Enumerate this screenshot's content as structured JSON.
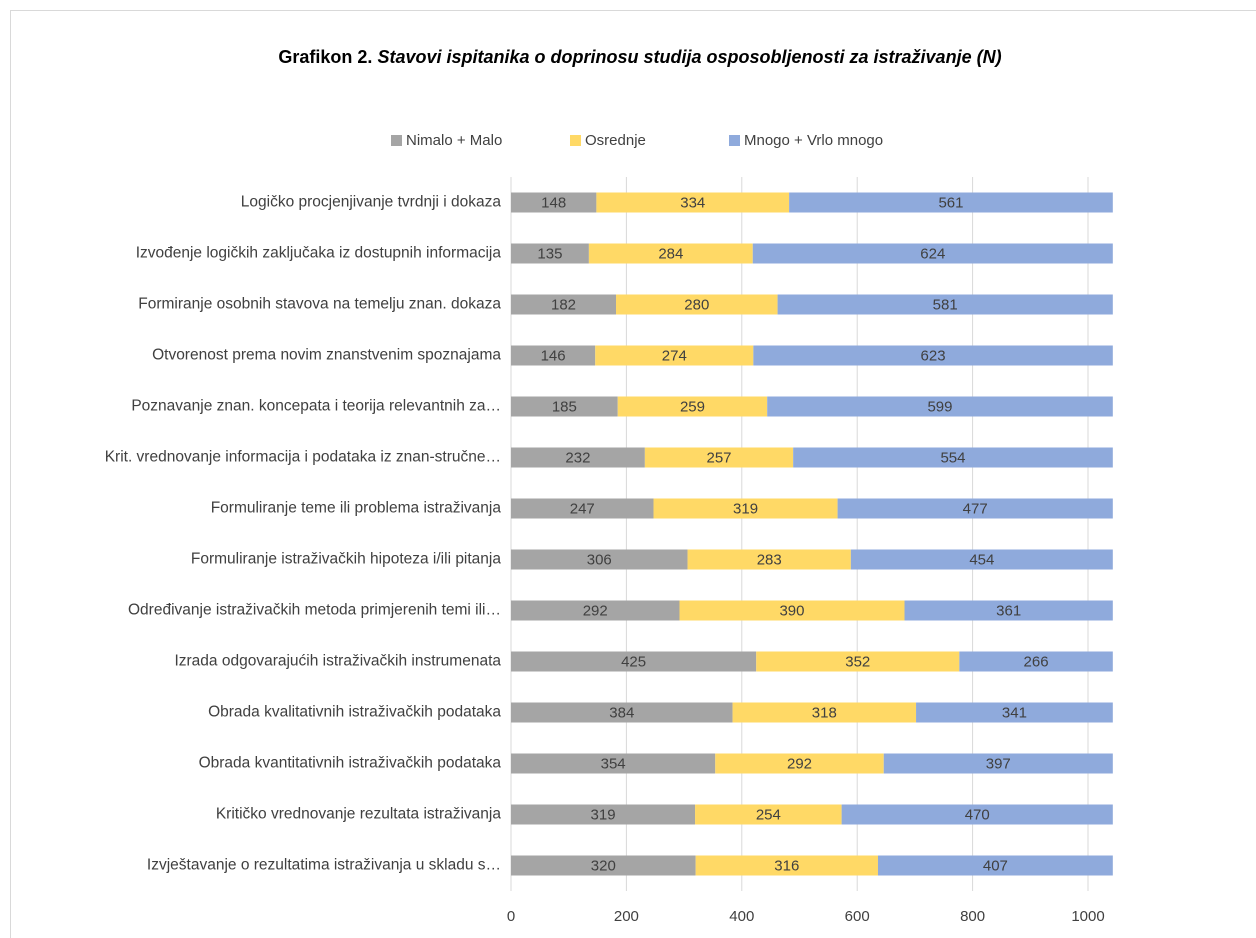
{
  "chart_data": {
    "type": "stacked_bar_horizontal",
    "title": "Grafikon 2.",
    "subtitle": "Stavovi ispitanika o doprinosu studija osposobljenosti za istraživanje  (N)",
    "categories": [
      "Logičko procjenjivanje tvrdnji i dokaza",
      "Izvođenje logičkih zaključaka iz dostupnih informacija",
      "Formiranje osobnih stavova na temelju znan. dokaza",
      "Otvorenost prema novim znanstvenim spoznajama",
      "Poznavanje znan. koncepata i teorija relevantnih za…",
      "Krit. vrednovanje informacija i podataka iz znan-stručne…",
      "Formuliranje teme ili problema istraživanja",
      "Formuliranje istraživačkih hipoteza i/ili pitanja",
      "Određivanje istraživačkih metoda primjerenih temi ili…",
      "Izrada odgovarajućih istraživačkih instrumenata",
      "Obrada kvalitativnih istraživačkih podataka",
      "Obrada kvantitativnih istraživačkih podataka",
      "Kritičko vrednovanje rezultata istraživanja",
      "Izvještavanje o rezultatima istraživanja u skladu s…"
    ],
    "series": [
      {
        "name": "Nimalo + Malo",
        "color": "#a5a5a5",
        "values": [
          148,
          135,
          182,
          146,
          185,
          232,
          247,
          306,
          292,
          425,
          384,
          354,
          319,
          320
        ]
      },
      {
        "name": "Osrednje",
        "color": "#ffd966",
        "values": [
          334,
          284,
          280,
          274,
          259,
          257,
          319,
          283,
          390,
          352,
          318,
          292,
          254,
          316
        ]
      },
      {
        "name": "Mnogo + Vrlo mnogo",
        "color": "#8faadc",
        "values": [
          561,
          624,
          581,
          623,
          599,
          554,
          477,
          454,
          361,
          266,
          341,
          397,
          470,
          407
        ]
      }
    ],
    "xlim": [
      0,
      1050
    ],
    "xticks": [
      0,
      200,
      400,
      600,
      800,
      1000
    ],
    "grid": true,
    "legend": "top"
  }
}
